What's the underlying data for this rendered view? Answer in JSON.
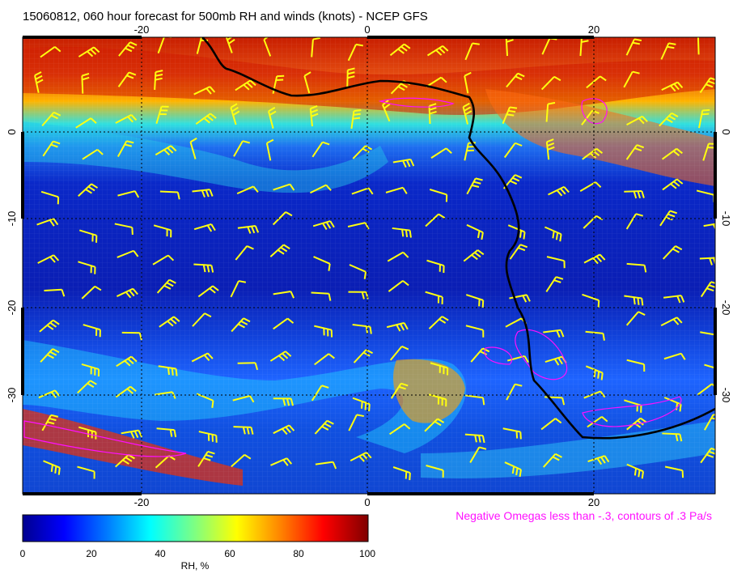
{
  "title": "15060812, 060 hour forecast for 500mb RH and winds (knots) - NCEP GFS",
  "note": "Negative Omegas less than -.3, contours of .3 Pa/s",
  "map": {
    "lon_ticks": [
      "-20",
      "0",
      "20"
    ],
    "lat_ticks": [
      "0",
      "-10",
      "-20",
      "-30"
    ],
    "colors": {
      "land_line": "#000000",
      "omega_contour": "#ff10ff",
      "barb": "#ffff10",
      "grid": "#000000"
    }
  },
  "colorbar": {
    "label": "RH, %",
    "ticks": [
      "0",
      "20",
      "40",
      "60",
      "80",
      "100"
    ],
    "stops": [
      "#00008f",
      "#0000ff",
      "#0080ff",
      "#00ffff",
      "#80ff80",
      "#ffff00",
      "#ff8000",
      "#ff0000",
      "#800000"
    ]
  }
}
